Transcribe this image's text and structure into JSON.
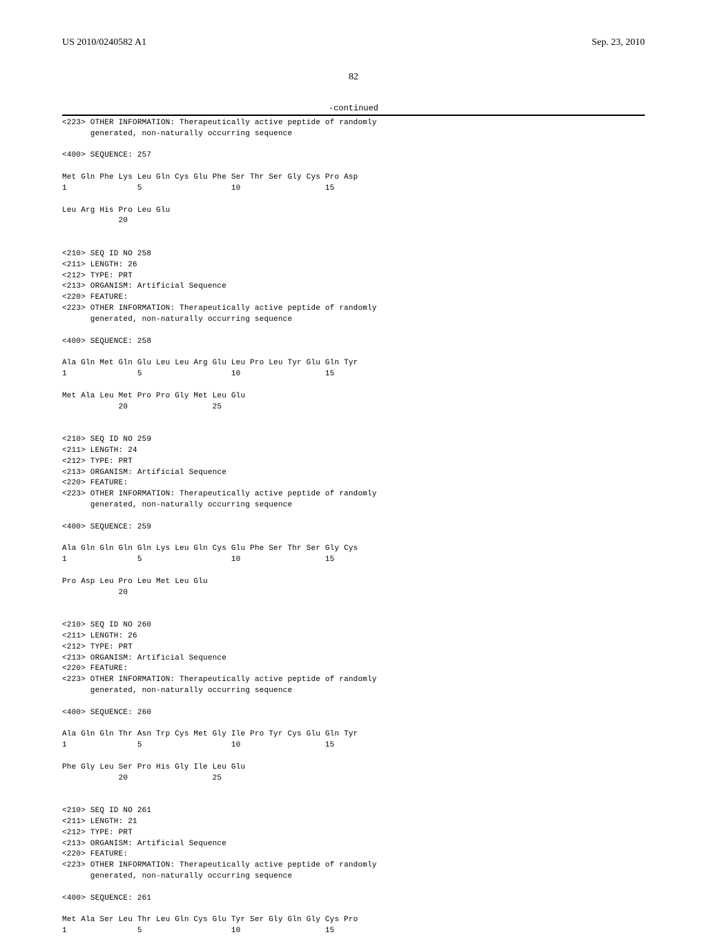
{
  "header": {
    "left": "US 2010/0240582 A1",
    "right": "Sep. 23, 2010"
  },
  "page_number": "82",
  "continued": "-continued",
  "listing_text": "<223> OTHER INFORMATION: Therapeutically active peptide of randomly\n      generated, non-naturally occurring sequence\n\n<400> SEQUENCE: 257\n\nMet Gln Phe Lys Leu Gln Cys Glu Phe Ser Thr Ser Gly Cys Pro Asp\n1               5                   10                  15\n\nLeu Arg His Pro Leu Glu\n            20\n\n\n<210> SEQ ID NO 258\n<211> LENGTH: 26\n<212> TYPE: PRT\n<213> ORGANISM: Artificial Sequence\n<220> FEATURE:\n<223> OTHER INFORMATION: Therapeutically active peptide of randomly\n      generated, non-naturally occurring sequence\n\n<400> SEQUENCE: 258\n\nAla Gln Met Gln Glu Leu Leu Arg Glu Leu Pro Leu Tyr Glu Gln Tyr\n1               5                   10                  15\n\nMet Ala Leu Met Pro Pro Gly Met Leu Glu\n            20                  25\n\n\n<210> SEQ ID NO 259\n<211> LENGTH: 24\n<212> TYPE: PRT\n<213> ORGANISM: Artificial Sequence\n<220> FEATURE:\n<223> OTHER INFORMATION: Therapeutically active peptide of randomly\n      generated, non-naturally occurring sequence\n\n<400> SEQUENCE: 259\n\nAla Gln Gln Gln Gln Lys Leu Gln Cys Glu Phe Ser Thr Ser Gly Cys\n1               5                   10                  15\n\nPro Asp Leu Pro Leu Met Leu Glu\n            20\n\n\n<210> SEQ ID NO 260\n<211> LENGTH: 26\n<212> TYPE: PRT\n<213> ORGANISM: Artificial Sequence\n<220> FEATURE:\n<223> OTHER INFORMATION: Therapeutically active peptide of randomly\n      generated, non-naturally occurring sequence\n\n<400> SEQUENCE: 260\n\nAla Gln Gln Thr Asn Trp Cys Met Gly Ile Pro Tyr Cys Glu Gln Tyr\n1               5                   10                  15\n\nPhe Gly Leu Ser Pro His Gly Ile Leu Glu\n            20                  25\n\n\n<210> SEQ ID NO 261\n<211> LENGTH: 21\n<212> TYPE: PRT\n<213> ORGANISM: Artificial Sequence\n<220> FEATURE:\n<223> OTHER INFORMATION: Therapeutically active peptide of randomly\n      generated, non-naturally occurring sequence\n\n<400> SEQUENCE: 261\n\nMet Ala Ser Leu Thr Leu Gln Cys Glu Tyr Ser Gly Gln Gly Cys Pro\n1               5                   10                  15"
}
